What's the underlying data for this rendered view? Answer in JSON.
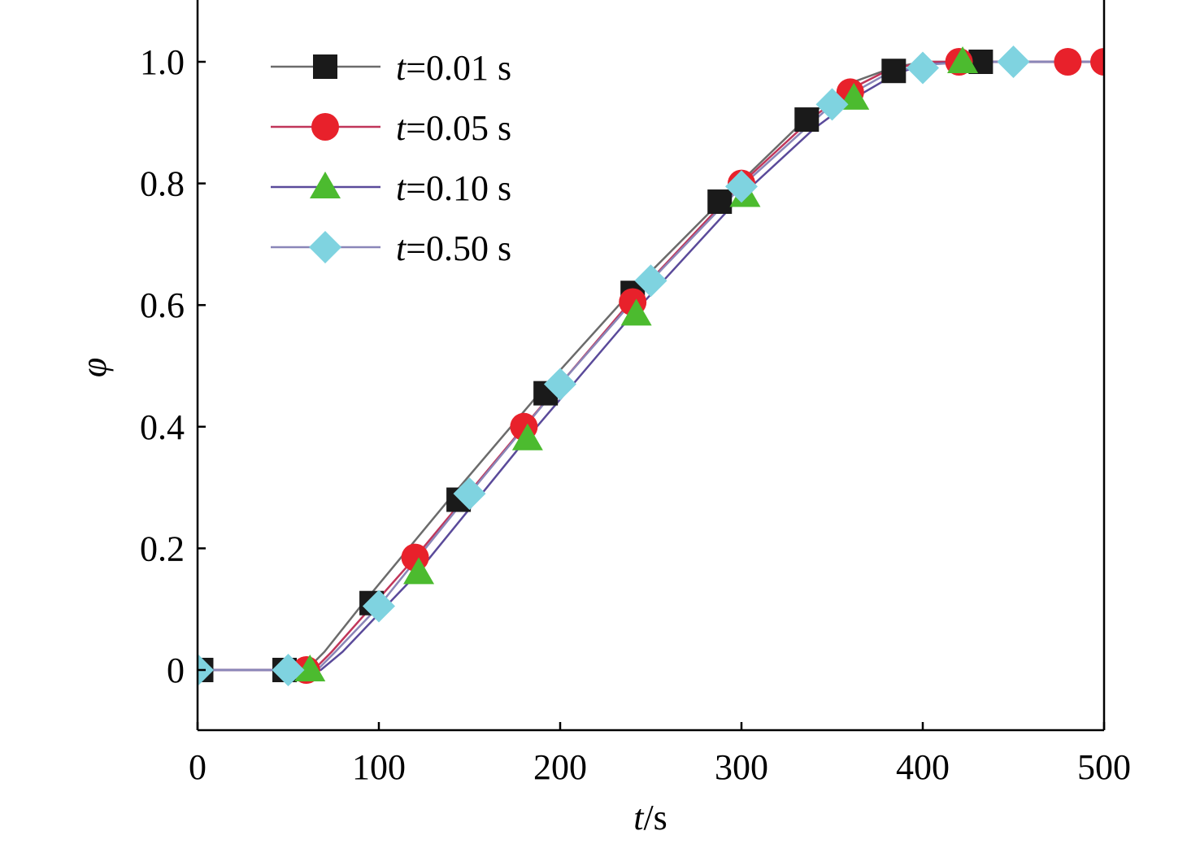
{
  "chart_data": {
    "type": "line",
    "xlabel_var": "t",
    "xlabel_unit": "/s",
    "ylabel": "φ",
    "xlim": [
      0,
      500
    ],
    "ylim": [
      -0.1,
      1.1
    ],
    "grid": false,
    "legend_position": "top-left",
    "x_ticks": [
      0,
      100,
      200,
      300,
      400,
      500
    ],
    "x_tick_labels": [
      "0",
      "100",
      "200",
      "300",
      "400",
      "500"
    ],
    "y_ticks": [
      0,
      0.2,
      0.4,
      0.6,
      0.8,
      1.0
    ],
    "y_tick_labels": [
      "0",
      "0.2",
      "0.4",
      "0.6",
      "0.8",
      "1.0"
    ],
    "series": [
      {
        "name_var": "t",
        "name_value": "=0.01 s",
        "marker": "square",
        "color": "#1a1a1a",
        "line_color": "#6b6b6b",
        "line": [
          [
            0,
            0
          ],
          [
            60,
            0
          ],
          [
            70,
            0.03
          ],
          [
            90,
            0.105
          ],
          [
            140,
            0.285
          ],
          [
            190,
            0.46
          ],
          [
            240,
            0.625
          ],
          [
            290,
            0.775
          ],
          [
            335,
            0.905
          ],
          [
            360,
            0.965
          ],
          [
            383,
            0.99
          ],
          [
            400,
            1.0
          ],
          [
            500,
            1.0
          ]
        ],
        "markers": [
          [
            2,
            0
          ],
          [
            48,
            0
          ],
          [
            96,
            0.11
          ],
          [
            144,
            0.28
          ],
          [
            192,
            0.455
          ],
          [
            240,
            0.62
          ],
          [
            288,
            0.77
          ],
          [
            336,
            0.905
          ],
          [
            384,
            0.985
          ],
          [
            432,
            1.0
          ]
        ]
      },
      {
        "name_var": "t",
        "name_value": "=0.05 s",
        "marker": "circle",
        "color": "#e8212b",
        "line_color": "#c0365a",
        "line": [
          [
            0,
            0
          ],
          [
            64,
            0
          ],
          [
            74,
            0.03
          ],
          [
            120,
            0.185
          ],
          [
            180,
            0.4
          ],
          [
            240,
            0.61
          ],
          [
            300,
            0.8
          ],
          [
            340,
            0.91
          ],
          [
            360,
            0.955
          ],
          [
            380,
            0.985
          ],
          [
            400,
            1.0
          ],
          [
            500,
            1.0
          ]
        ],
        "markers": [
          [
            60,
            0
          ],
          [
            120,
            0.185
          ],
          [
            180,
            0.4
          ],
          [
            240,
            0.605
          ],
          [
            300,
            0.8
          ],
          [
            360,
            0.95
          ],
          [
            420,
            1.0
          ],
          [
            480,
            1.0
          ],
          [
            500,
            1.0
          ]
        ]
      },
      {
        "name_var": "t",
        "name_value": "=0.10 s",
        "marker": "triangle",
        "color": "#4cbb2f",
        "line_color": "#5a4a9a",
        "line": [
          [
            0,
            0
          ],
          [
            68,
            0
          ],
          [
            80,
            0.03
          ],
          [
            120,
            0.155
          ],
          [
            180,
            0.375
          ],
          [
            240,
            0.585
          ],
          [
            300,
            0.78
          ],
          [
            340,
            0.89
          ],
          [
            365,
            0.945
          ],
          [
            385,
            0.98
          ],
          [
            400,
            0.995
          ],
          [
            420,
            1.0
          ],
          [
            500,
            1.0
          ]
        ],
        "markers": [
          [
            62,
            0
          ],
          [
            122,
            0.16
          ],
          [
            182,
            0.38
          ],
          [
            242,
            0.585
          ],
          [
            302,
            0.78
          ],
          [
            362,
            0.94
          ],
          [
            422,
            1.0
          ]
        ]
      },
      {
        "name_var": "t",
        "name_value": "=0.50 s",
        "marker": "diamond",
        "color": "#7fd3e0",
        "line_color": "#8a86b8",
        "line": [
          [
            0,
            0
          ],
          [
            66,
            0
          ],
          [
            76,
            0.03
          ],
          [
            100,
            0.105
          ],
          [
            150,
            0.29
          ],
          [
            200,
            0.47
          ],
          [
            250,
            0.64
          ],
          [
            300,
            0.795
          ],
          [
            350,
            0.93
          ],
          [
            380,
            0.98
          ],
          [
            400,
            0.995
          ],
          [
            430,
            1.0
          ],
          [
            500,
            1.0
          ]
        ],
        "markers": [
          [
            0,
            0
          ],
          [
            50,
            0
          ],
          [
            100,
            0.105
          ],
          [
            150,
            0.29
          ],
          [
            200,
            0.47
          ],
          [
            250,
            0.64
          ],
          [
            300,
            0.795
          ],
          [
            350,
            0.93
          ],
          [
            400,
            0.99
          ],
          [
            450,
            1.0
          ]
        ]
      }
    ]
  }
}
